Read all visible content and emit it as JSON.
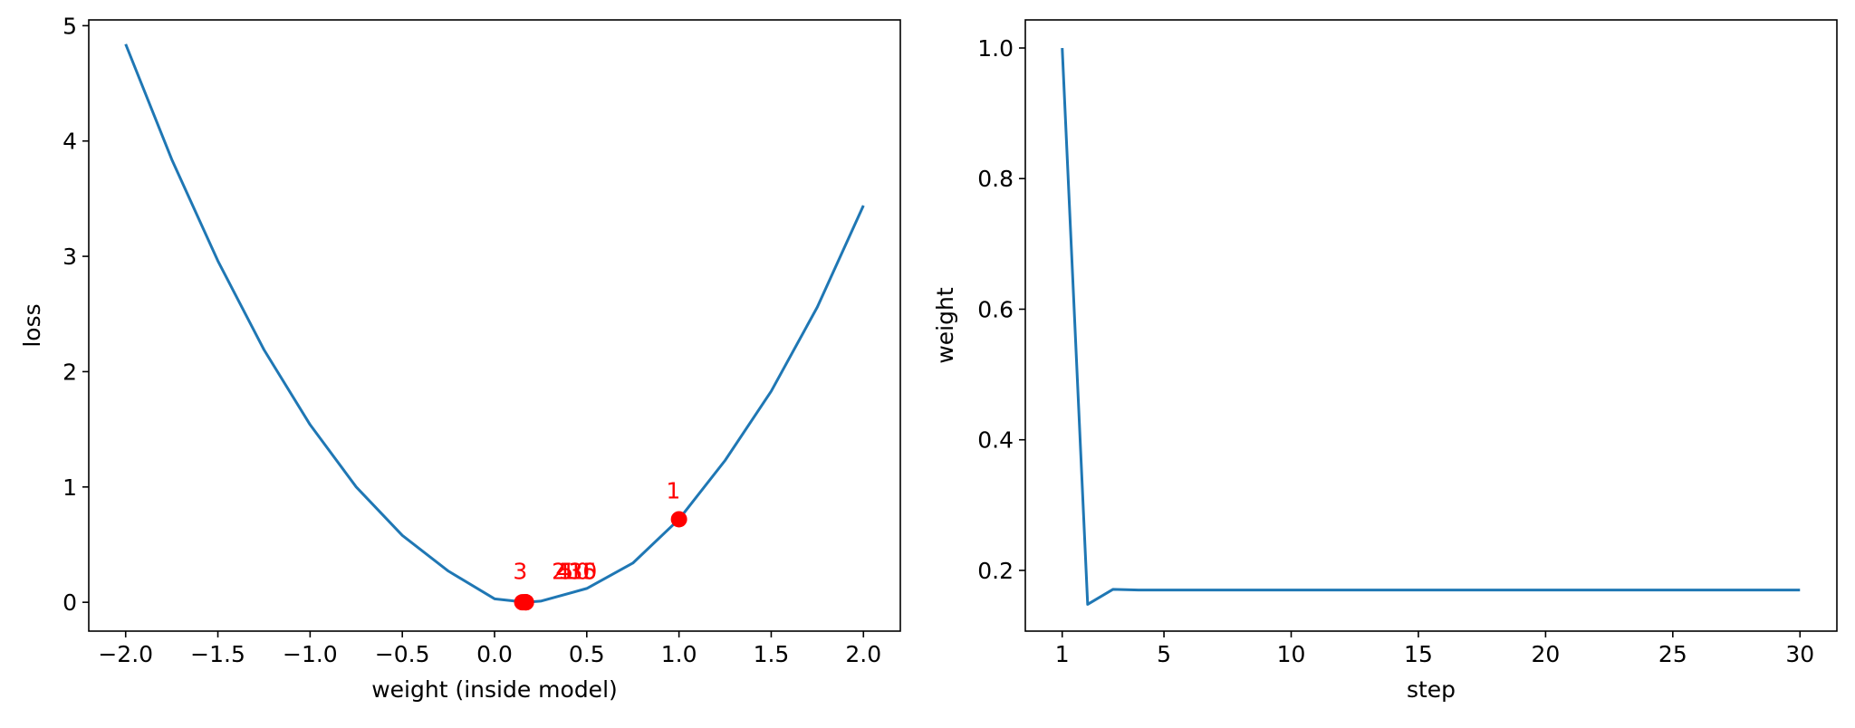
{
  "colors": {
    "line": "#1f77b4",
    "points": "#ff0000",
    "annotations": "#ff0000",
    "axes": "#000000"
  },
  "chart_data": [
    {
      "type": "line",
      "title": "",
      "xlabel": "weight (inside model)",
      "ylabel": "loss",
      "xlim": [
        -2.2,
        2.2
      ],
      "ylim": [
        -0.25,
        5.05
      ],
      "xticks": [
        -2.0,
        -1.5,
        -1.0,
        -0.5,
        0.0,
        0.5,
        1.0,
        1.5,
        2.0
      ],
      "xtick_labels": [
        "−2.0",
        "−1.5",
        "−1.0",
        "−0.5",
        "0.0",
        "0.5",
        "1.0",
        "1.5",
        "2.0"
      ],
      "yticks": [
        0,
        1,
        2,
        3,
        4,
        5
      ],
      "ytick_labels": [
        "0",
        "1",
        "2",
        "3",
        "4",
        "5"
      ],
      "grid": false,
      "curve": {
        "x": [
          -2.0,
          -1.75,
          -1.5,
          -1.25,
          -1.0,
          -0.75,
          -0.5,
          -0.25,
          0.0,
          0.17,
          0.25,
          0.5,
          0.75,
          1.0,
          1.25,
          1.5,
          1.75,
          2.0
        ],
        "y": [
          4.84,
          3.84,
          2.96,
          2.19,
          1.54,
          1.0,
          0.58,
          0.27,
          0.03,
          0.0,
          0.01,
          0.12,
          0.34,
          0.72,
          1.23,
          1.83,
          2.56,
          3.44
        ]
      },
      "scatter": {
        "x": [
          1.0,
          0.15,
          0.17,
          0.16,
          0.17,
          0.17
        ],
        "y": [
          0.72,
          0.0,
          0.0,
          0.0,
          0.0,
          0.0
        ]
      },
      "annotations": [
        {
          "text": "1",
          "x": 0.93,
          "y": 0.9
        },
        {
          "text": "3",
          "x": 0.1,
          "y": 0.2
        },
        {
          "text": "2",
          "x": 0.31,
          "y": 0.2
        },
        {
          "text": "4",
          "x": 0.33,
          "y": 0.2
        },
        {
          "text": "5",
          "x": 0.35,
          "y": 0.2
        },
        {
          "text": "10",
          "x": 0.36,
          "y": 0.2
        },
        {
          "text": "15",
          "x": 0.4,
          "y": 0.2
        },
        {
          "text": "30",
          "x": 0.4,
          "y": 0.2
        }
      ]
    },
    {
      "type": "line",
      "title": "",
      "xlabel": "step",
      "ylabel": "weight",
      "xlim": [
        -0.45,
        31.45
      ],
      "ylim": [
        0.107,
        1.043
      ],
      "xticks": [
        1,
        5,
        10,
        15,
        20,
        25,
        30
      ],
      "xtick_labels": [
        "1",
        "5",
        "10",
        "15",
        "20",
        "25",
        "30"
      ],
      "yticks": [
        0.2,
        0.4,
        0.6,
        0.8,
        1.0
      ],
      "ytick_labels": [
        "0.2",
        "0.4",
        "0.6",
        "0.8",
        "1.0"
      ],
      "grid": false,
      "x": [
        1,
        2,
        3,
        4,
        5,
        6,
        7,
        8,
        9,
        10,
        11,
        12,
        13,
        14,
        15,
        16,
        17,
        18,
        19,
        20,
        21,
        22,
        23,
        24,
        25,
        26,
        27,
        28,
        29,
        30
      ],
      "y": [
        1.0,
        0.148,
        0.171,
        0.17,
        0.17,
        0.17,
        0.17,
        0.17,
        0.17,
        0.17,
        0.17,
        0.17,
        0.17,
        0.17,
        0.17,
        0.17,
        0.17,
        0.17,
        0.17,
        0.17,
        0.17,
        0.17,
        0.17,
        0.17,
        0.17,
        0.17,
        0.17,
        0.17,
        0.17,
        0.17
      ]
    }
  ]
}
